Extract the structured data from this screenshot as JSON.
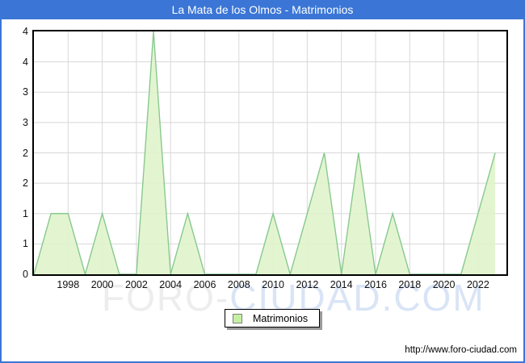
{
  "title": "La Mata de los Olmos - Matrimonios",
  "legend": {
    "label": "Matrimonios"
  },
  "watermark": {
    "part1": "FORO-",
    "part2": "CIUDAD.COM"
  },
  "footer": {
    "url": "http://www.foro-ciudad.com"
  },
  "colors": {
    "frame_blue": "#3b76d6",
    "title_text": "#ffffff",
    "grid": "#d8d8d8",
    "plot_border": "#000000",
    "area_fill": "#e0f4cb",
    "area_line": "#88c98f",
    "legend_swatch_fill": "#c5f0a2",
    "watermark_gray": "#ededed",
    "watermark_blue": "#d9e4f6"
  },
  "chart_data": {
    "type": "area",
    "title": "La Mata de los Olmos - Matrimonios",
    "x": [
      1996,
      1997,
      1998,
      1999,
      2000,
      2001,
      2002,
      2003,
      2004,
      2005,
      2006,
      2007,
      2008,
      2009,
      2010,
      2011,
      2012,
      2013,
      2014,
      2015,
      2016,
      2017,
      2018,
      2019,
      2020,
      2021,
      2022,
      2023
    ],
    "series": [
      {
        "name": "Matrimonios",
        "values": [
          0,
          1,
          1,
          0,
          1,
          0,
          0,
          4,
          0,
          1,
          0,
          0,
          0,
          0,
          1,
          0,
          1,
          2,
          0,
          2,
          0,
          1,
          0,
          0,
          0,
          0,
          1,
          2
        ]
      }
    ],
    "ylim": [
      0,
      4
    ],
    "y_tick_step": 0.5,
    "y_tick_labels": [
      "4",
      "4",
      "3",
      "3",
      "2",
      "2",
      "1",
      "1",
      "0"
    ],
    "x_tick_labels": [
      "1998",
      "2000",
      "2002",
      "2004",
      "2006",
      "2008",
      "2010",
      "2012",
      "2014",
      "2016",
      "2018",
      "2020",
      "2022"
    ],
    "grid": true,
    "legend_position": "bottom-center"
  }
}
